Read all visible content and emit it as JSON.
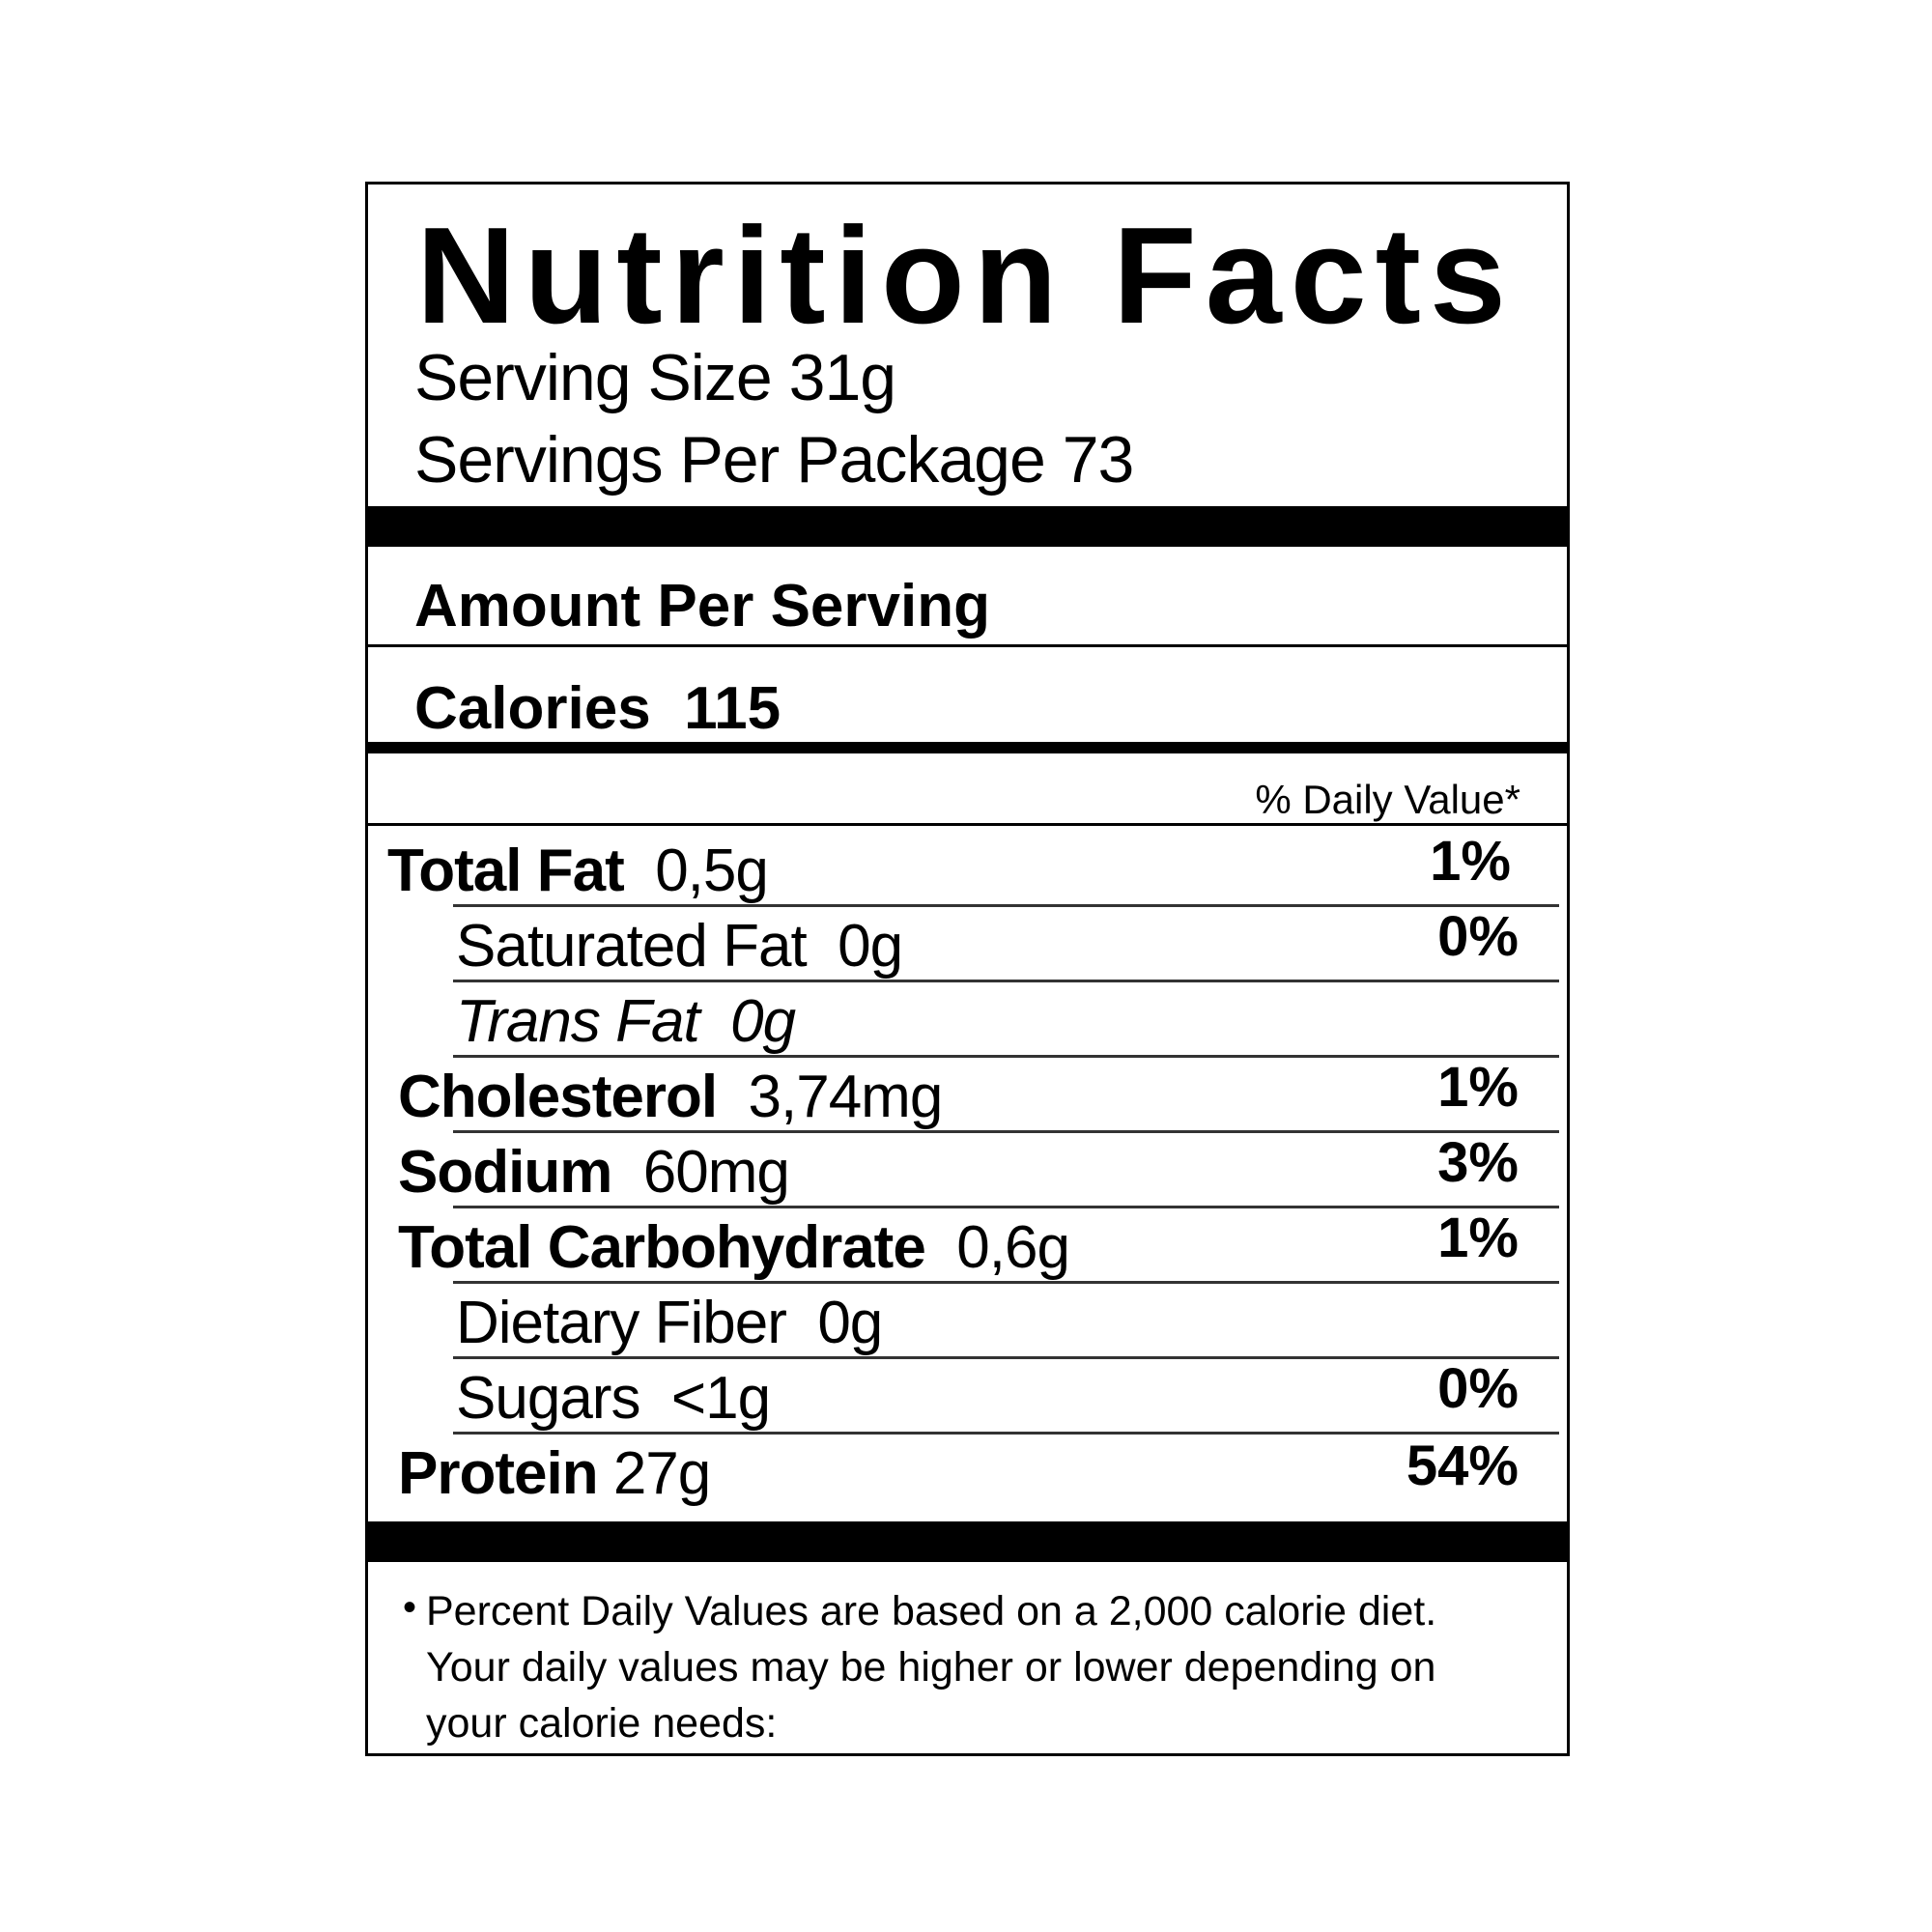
{
  "title": "Nutrition Facts",
  "serving_size": "Serving Size 31g",
  "servings_per_package": "Servings Per Package 73",
  "amount_per_serving": "Amount Per Serving",
  "calories_label": "Calories",
  "calories_value": "115",
  "daily_value_header": "% Daily Value*",
  "rows": [
    {
      "name": "Total Fat",
      "amount": "0,5g",
      "dv": "1%"
    },
    {
      "name": "Saturated Fat",
      "amount": "0g",
      "dv": "0%"
    },
    {
      "name": "Trans Fat",
      "amount": "0g",
      "dv": ""
    },
    {
      "name": "Cholesterol",
      "amount": "3,74mg",
      "dv": "1%"
    },
    {
      "name": "Sodium",
      "amount": "60mg",
      "dv": "3%"
    },
    {
      "name": "Total Carbohydrate",
      "amount": "0,6g",
      "dv": "1%"
    },
    {
      "name": "Dietary Fiber",
      "amount": "0g",
      "dv": ""
    },
    {
      "name": "Sugars",
      "amount": "<1g",
      "dv": "0%"
    },
    {
      "name": "Protein",
      "amount": "27g",
      "dv": "54%"
    }
  ],
  "footnote_bullet": "•",
  "footnote": "Percent Daily Values are based on a 2,000 calorie diet. Your daily values may be higher or lower depending on your calorie needs:"
}
